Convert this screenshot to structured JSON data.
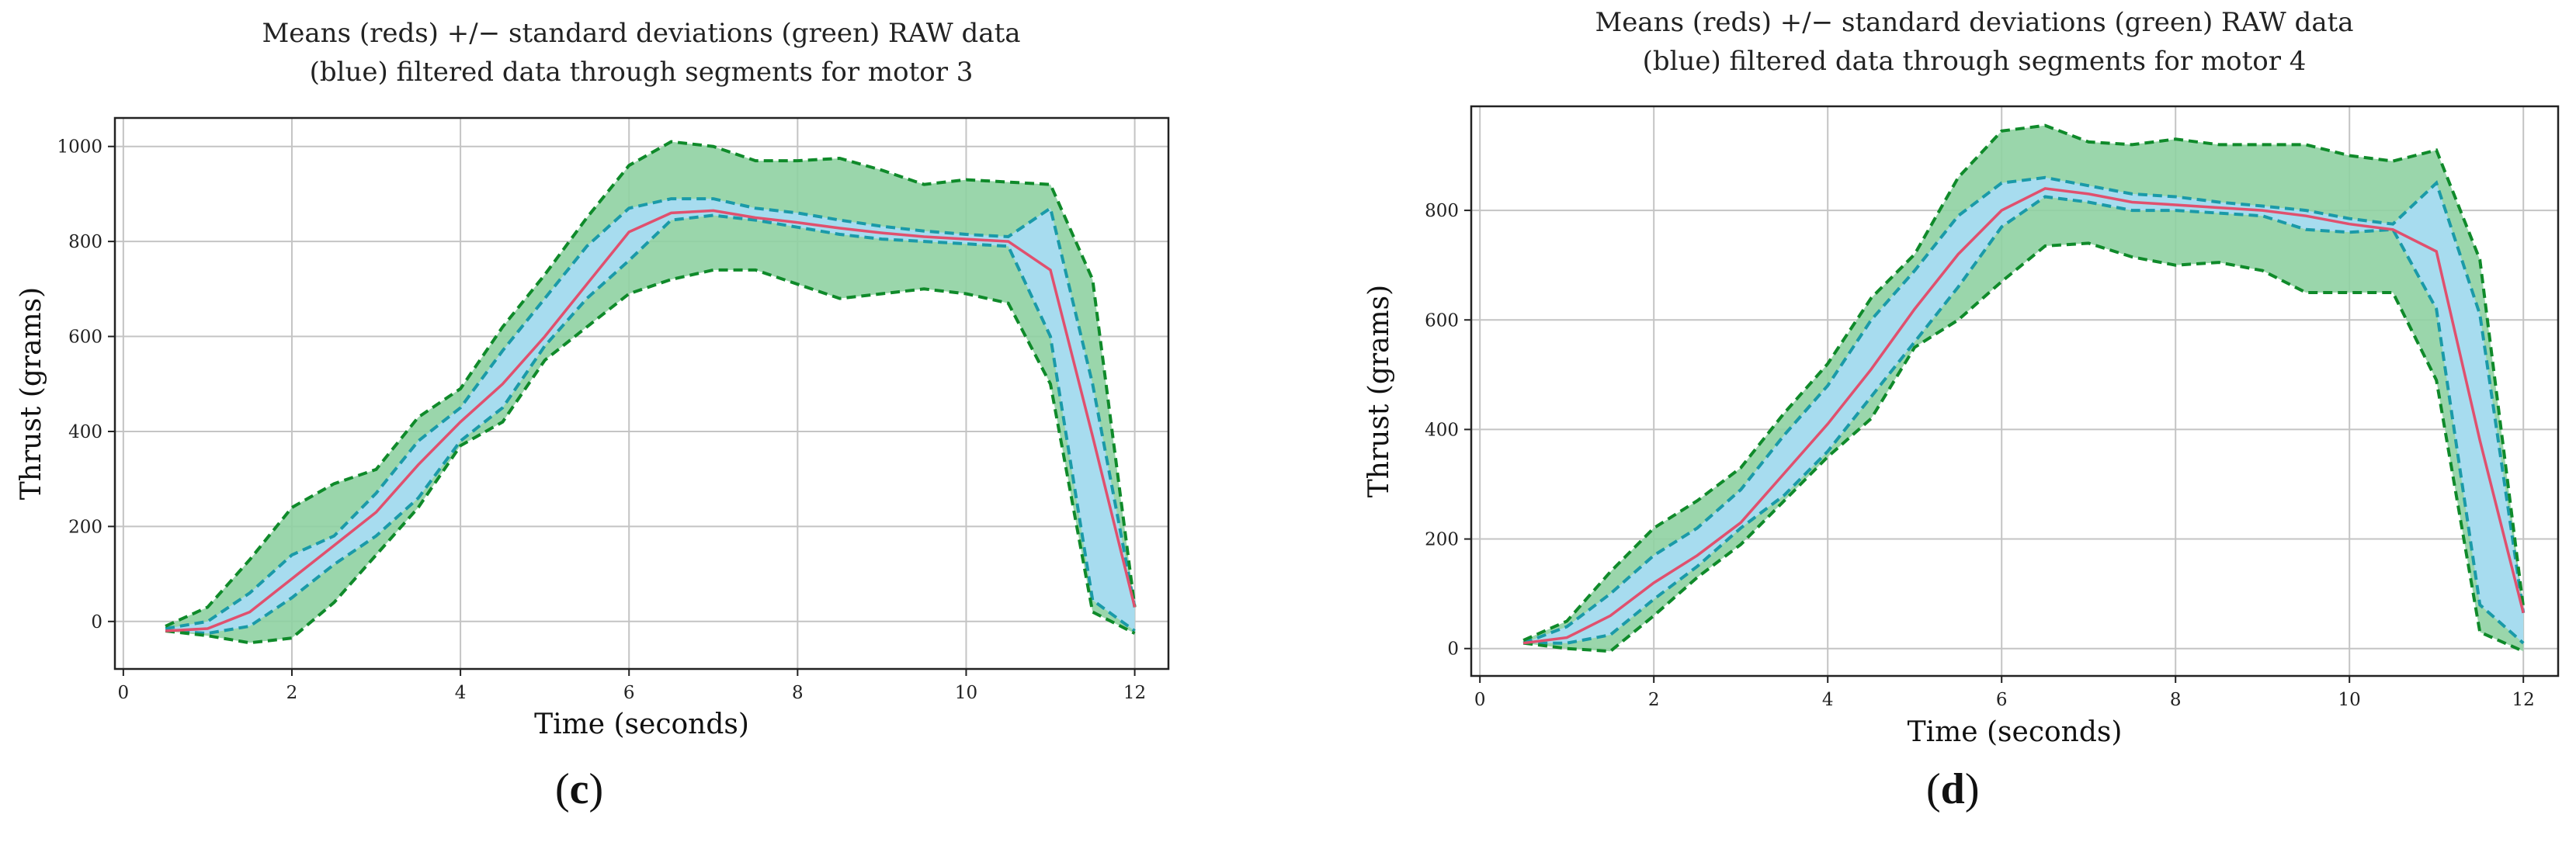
{
  "figure": {
    "panels": [
      {
        "label_open": "(",
        "label_letter": "c",
        "label_close": ")"
      },
      {
        "label_open": "(",
        "label_letter": "d",
        "label_close": ")"
      }
    ]
  },
  "colors": {
    "mean": "#e0506e",
    "raw_band_fill": "#8fd2a2",
    "raw_band_line": "#0f8a2a",
    "filtered_fill": "#a8dcf2",
    "filtered_line": "#1a9aa8",
    "grid": "#c4c4c4",
    "axis": "#222222"
  },
  "chart_data": [
    {
      "type": "line",
      "title": [
        "Means (reds) +/− standard deviations (green) RAW data",
        "(blue) filtered data through segments for motor 3"
      ],
      "xlabel": "Time (seconds)",
      "ylabel": "Thrust (grams)",
      "xlim": [
        -0.1,
        12.4
      ],
      "ylim": [
        -100,
        1060
      ],
      "xticks": [
        0,
        2,
        4,
        6,
        8,
        10,
        12
      ],
      "xtick_labels": [
        "0",
        "2",
        "4",
        "6",
        "8",
        "10",
        "12"
      ],
      "yticks": [
        0,
        200,
        400,
        600,
        800,
        1000
      ],
      "ytick_labels": [
        "0",
        "200",
        "400",
        "600",
        "800",
        "1000"
      ],
      "x": [
        0.5,
        1.0,
        1.5,
        2.0,
        2.5,
        3.0,
        3.5,
        4.0,
        4.5,
        5.0,
        5.5,
        6.0,
        6.5,
        7.0,
        7.5,
        8.0,
        8.5,
        9.0,
        9.5,
        10.0,
        10.5,
        11.0,
        11.5,
        12.0
      ],
      "series": [
        {
          "name": "mean",
          "values": [
            -20,
            -15,
            20,
            90,
            160,
            230,
            330,
            420,
            500,
            600,
            710,
            820,
            860,
            865,
            850,
            840,
            828,
            818,
            810,
            805,
            800,
            740,
            390,
            30
          ]
        },
        {
          "name": "raw_upper",
          "values": [
            -10,
            30,
            130,
            240,
            290,
            320,
            430,
            490,
            620,
            730,
            850,
            960,
            1010,
            1000,
            970,
            970,
            975,
            950,
            920,
            930,
            925,
            920,
            720,
            30
          ]
        },
        {
          "name": "raw_lower",
          "values": [
            -20,
            -30,
            -45,
            -35,
            40,
            140,
            240,
            370,
            420,
            550,
            620,
            690,
            720,
            740,
            740,
            710,
            680,
            690,
            700,
            690,
            670,
            500,
            20,
            -25
          ]
        },
        {
          "name": "filtered_upper",
          "values": [
            -15,
            0,
            60,
            140,
            180,
            270,
            380,
            450,
            570,
            680,
            790,
            870,
            890,
            890,
            870,
            860,
            845,
            832,
            822,
            815,
            810,
            870,
            500,
            30
          ]
        },
        {
          "name": "filtered_lower",
          "values": [
            -20,
            -25,
            -10,
            50,
            120,
            180,
            260,
            380,
            450,
            580,
            680,
            760,
            845,
            855,
            845,
            830,
            815,
            805,
            800,
            795,
            790,
            600,
            45,
            -20
          ]
        }
      ]
    },
    {
      "type": "line",
      "title": [
        "Means (reds) +/− standard deviations (green) RAW data",
        "(blue) filtered data through segments for motor 4"
      ],
      "xlabel": "Time (seconds)",
      "ylabel": "Thrust (grams)",
      "xlim": [
        -0.1,
        12.4
      ],
      "ylim": [
        -50,
        990
      ],
      "xticks": [
        0,
        2,
        4,
        6,
        8,
        10,
        12
      ],
      "xtick_labels": [
        "0",
        "2",
        "4",
        "6",
        "8",
        "10",
        "12"
      ],
      "yticks": [
        0,
        200,
        400,
        600,
        800
      ],
      "ytick_labels": [
        "0",
        "200",
        "400",
        "600",
        "800"
      ],
      "x": [
        0.5,
        1.0,
        1.5,
        2.0,
        2.5,
        3.0,
        3.5,
        4.0,
        4.5,
        5.0,
        5.5,
        6.0,
        6.5,
        7.0,
        7.5,
        8.0,
        8.5,
        9.0,
        9.5,
        10.0,
        10.5,
        11.0,
        11.5,
        12.0
      ],
      "series": [
        {
          "name": "mean",
          "values": [
            10,
            20,
            60,
            120,
            170,
            230,
            320,
            410,
            510,
            620,
            720,
            800,
            840,
            830,
            815,
            810,
            805,
            800,
            790,
            775,
            765,
            725,
            380,
            65
          ]
        },
        {
          "name": "raw_upper",
          "values": [
            15,
            50,
            140,
            220,
            270,
            330,
            430,
            520,
            640,
            720,
            860,
            945,
            955,
            925,
            920,
            930,
            920,
            920,
            920,
            900,
            890,
            910,
            710,
            75
          ]
        },
        {
          "name": "raw_lower",
          "values": [
            10,
            0,
            -5,
            60,
            130,
            190,
            270,
            350,
            420,
            550,
            600,
            670,
            735,
            740,
            715,
            700,
            705,
            690,
            650,
            650,
            650,
            490,
            30,
            -5
          ]
        },
        {
          "name": "filtered_upper",
          "values": [
            10,
            40,
            100,
            170,
            220,
            290,
            390,
            480,
            600,
            690,
            790,
            850,
            860,
            845,
            830,
            825,
            815,
            808,
            800,
            785,
            775,
            850,
            610,
            65
          ]
        },
        {
          "name": "filtered_lower",
          "values": [
            10,
            10,
            25,
            90,
            150,
            220,
            280,
            360,
            460,
            560,
            660,
            770,
            825,
            815,
            800,
            800,
            795,
            790,
            765,
            760,
            765,
            620,
            80,
            10
          ]
        }
      ]
    }
  ]
}
